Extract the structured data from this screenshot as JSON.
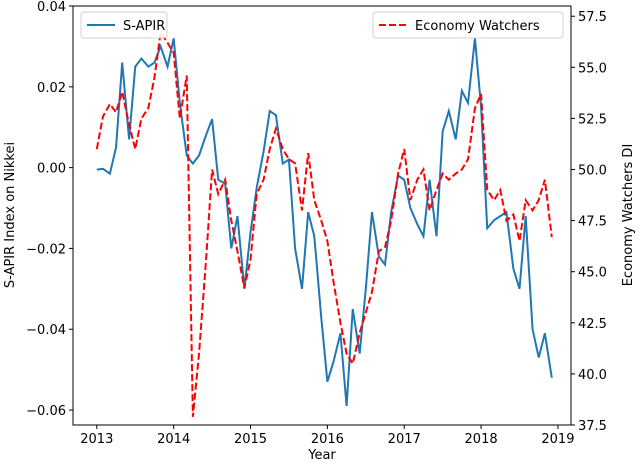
{
  "chart_data": {
    "type": "line",
    "xlabel": "Year",
    "ylabel": "S-APIR Index on Nikkei",
    "y2label": "Economy Watchers DI",
    "x": [
      2013,
      2013.08,
      2013.17,
      2013.25,
      2013.33,
      2013.42,
      2013.5,
      2013.58,
      2013.67,
      2013.75,
      2013.83,
      2013.92,
      2014,
      2014.08,
      2014.17,
      2014.25,
      2014.33,
      2014.42,
      2014.5,
      2014.58,
      2014.67,
      2014.75,
      2014.83,
      2014.92,
      2015,
      2015.08,
      2015.17,
      2015.25,
      2015.33,
      2015.42,
      2015.5,
      2015.58,
      2015.67,
      2015.75,
      2015.83,
      2015.92,
      2016,
      2016.08,
      2016.17,
      2016.25,
      2016.33,
      2016.42,
      2016.5,
      2016.58,
      2016.67,
      2016.75,
      2016.83,
      2016.92,
      2017,
      2017.08,
      2017.17,
      2017.25,
      2017.33,
      2017.42,
      2017.5,
      2017.58,
      2017.67,
      2017.75,
      2017.83,
      2017.92,
      2018,
      2018.08,
      2018.17,
      2018.25,
      2018.33,
      2018.42,
      2018.5,
      2018.58,
      2018.67,
      2018.75,
      2018.83,
      2018.92
    ],
    "series": [
      {
        "name": "S-APIR",
        "color": "#1f77b4",
        "dash": "solid",
        "values": [
          -0.0005,
          -0.0003,
          -0.0015,
          0.005,
          0.026,
          0.007,
          0.025,
          0.027,
          0.025,
          0.026,
          0.03,
          0.025,
          0.032,
          0.016,
          0.003,
          0.001,
          0.003,
          0.008,
          0.012,
          -0.003,
          -0.004,
          -0.02,
          -0.012,
          -0.03,
          -0.016,
          -0.005,
          0.004,
          0.014,
          0.013,
          0.001,
          0.002,
          -0.02,
          -0.03,
          -0.011,
          -0.017,
          -0.037,
          -0.053,
          -0.048,
          -0.041,
          -0.059,
          -0.035,
          -0.046,
          -0.03,
          -0.011,
          -0.022,
          -0.024,
          -0.011,
          -0.002,
          -0.003,
          -0.01,
          -0.014,
          -0.017,
          -0.003,
          -0.017,
          0.009,
          0.014,
          0.007,
          0.019,
          0.016,
          0.032,
          0.015,
          -0.015,
          -0.013,
          -0.012,
          -0.011,
          -0.025,
          -0.03,
          -0.012,
          -0.04,
          -0.047,
          -0.041,
          -0.052
        ]
      },
      {
        "name": "Economy Watchers",
        "color": "#ff0000",
        "dash": "dashed",
        "axis": "y2",
        "values": [
          51.0,
          52.6,
          53.2,
          52.8,
          53.8,
          52.2,
          51.0,
          52.5,
          53.0,
          54.5,
          56.7,
          56.2,
          55.7,
          52.5,
          54.6,
          37.9,
          41.0,
          45.5,
          50.0,
          48.8,
          49.5,
          47.5,
          46.0,
          44.2,
          45.6,
          48.8,
          49.5,
          51.0,
          52.0,
          51.0,
          50.5,
          50.3,
          48.0,
          50.8,
          48.5,
          47.5,
          46.5,
          44.5,
          42.5,
          41.0,
          40.5,
          42.0,
          43.0,
          44.0,
          46.0,
          46.2,
          47.5,
          49.8,
          51.0,
          48.5,
          49.5,
          50.0,
          48.0,
          49.0,
          49.8,
          49.5,
          49.8,
          50.0,
          50.5,
          53.0,
          53.7,
          49.0,
          48.5,
          49.0,
          47.5,
          47.8,
          46.5,
          48.5,
          48.0,
          48.5,
          49.5,
          46.7
        ]
      }
    ],
    "xlim": [
      2012.69,
      2019.17
    ],
    "xticks": [
      2013,
      2014,
      2015,
      2016,
      2017,
      2018,
      2019
    ],
    "ylim": [
      -0.0637,
      0.04
    ],
    "yticks": [
      {
        "value": -0.06,
        "label": "−0.06"
      },
      {
        "value": -0.04,
        "label": "−0.04"
      },
      {
        "value": -0.02,
        "label": "−0.02"
      },
      {
        "value": 0,
        "label": "0.00"
      },
      0.02,
      0.04
    ],
    "y2lim": [
      37.5,
      58.0
    ],
    "y2ticks": [
      37.5,
      {
        "value": 40,
        "label": "40.0"
      },
      42.5,
      {
        "value": 45,
        "label": "45.0"
      },
      47.5,
      {
        "value": 50,
        "label": "50.0"
      },
      52.5,
      {
        "value": 55,
        "label": "55.0"
      },
      57.5
    ],
    "legend": [
      "upper left",
      "upper right"
    ],
    "grid": false
  }
}
